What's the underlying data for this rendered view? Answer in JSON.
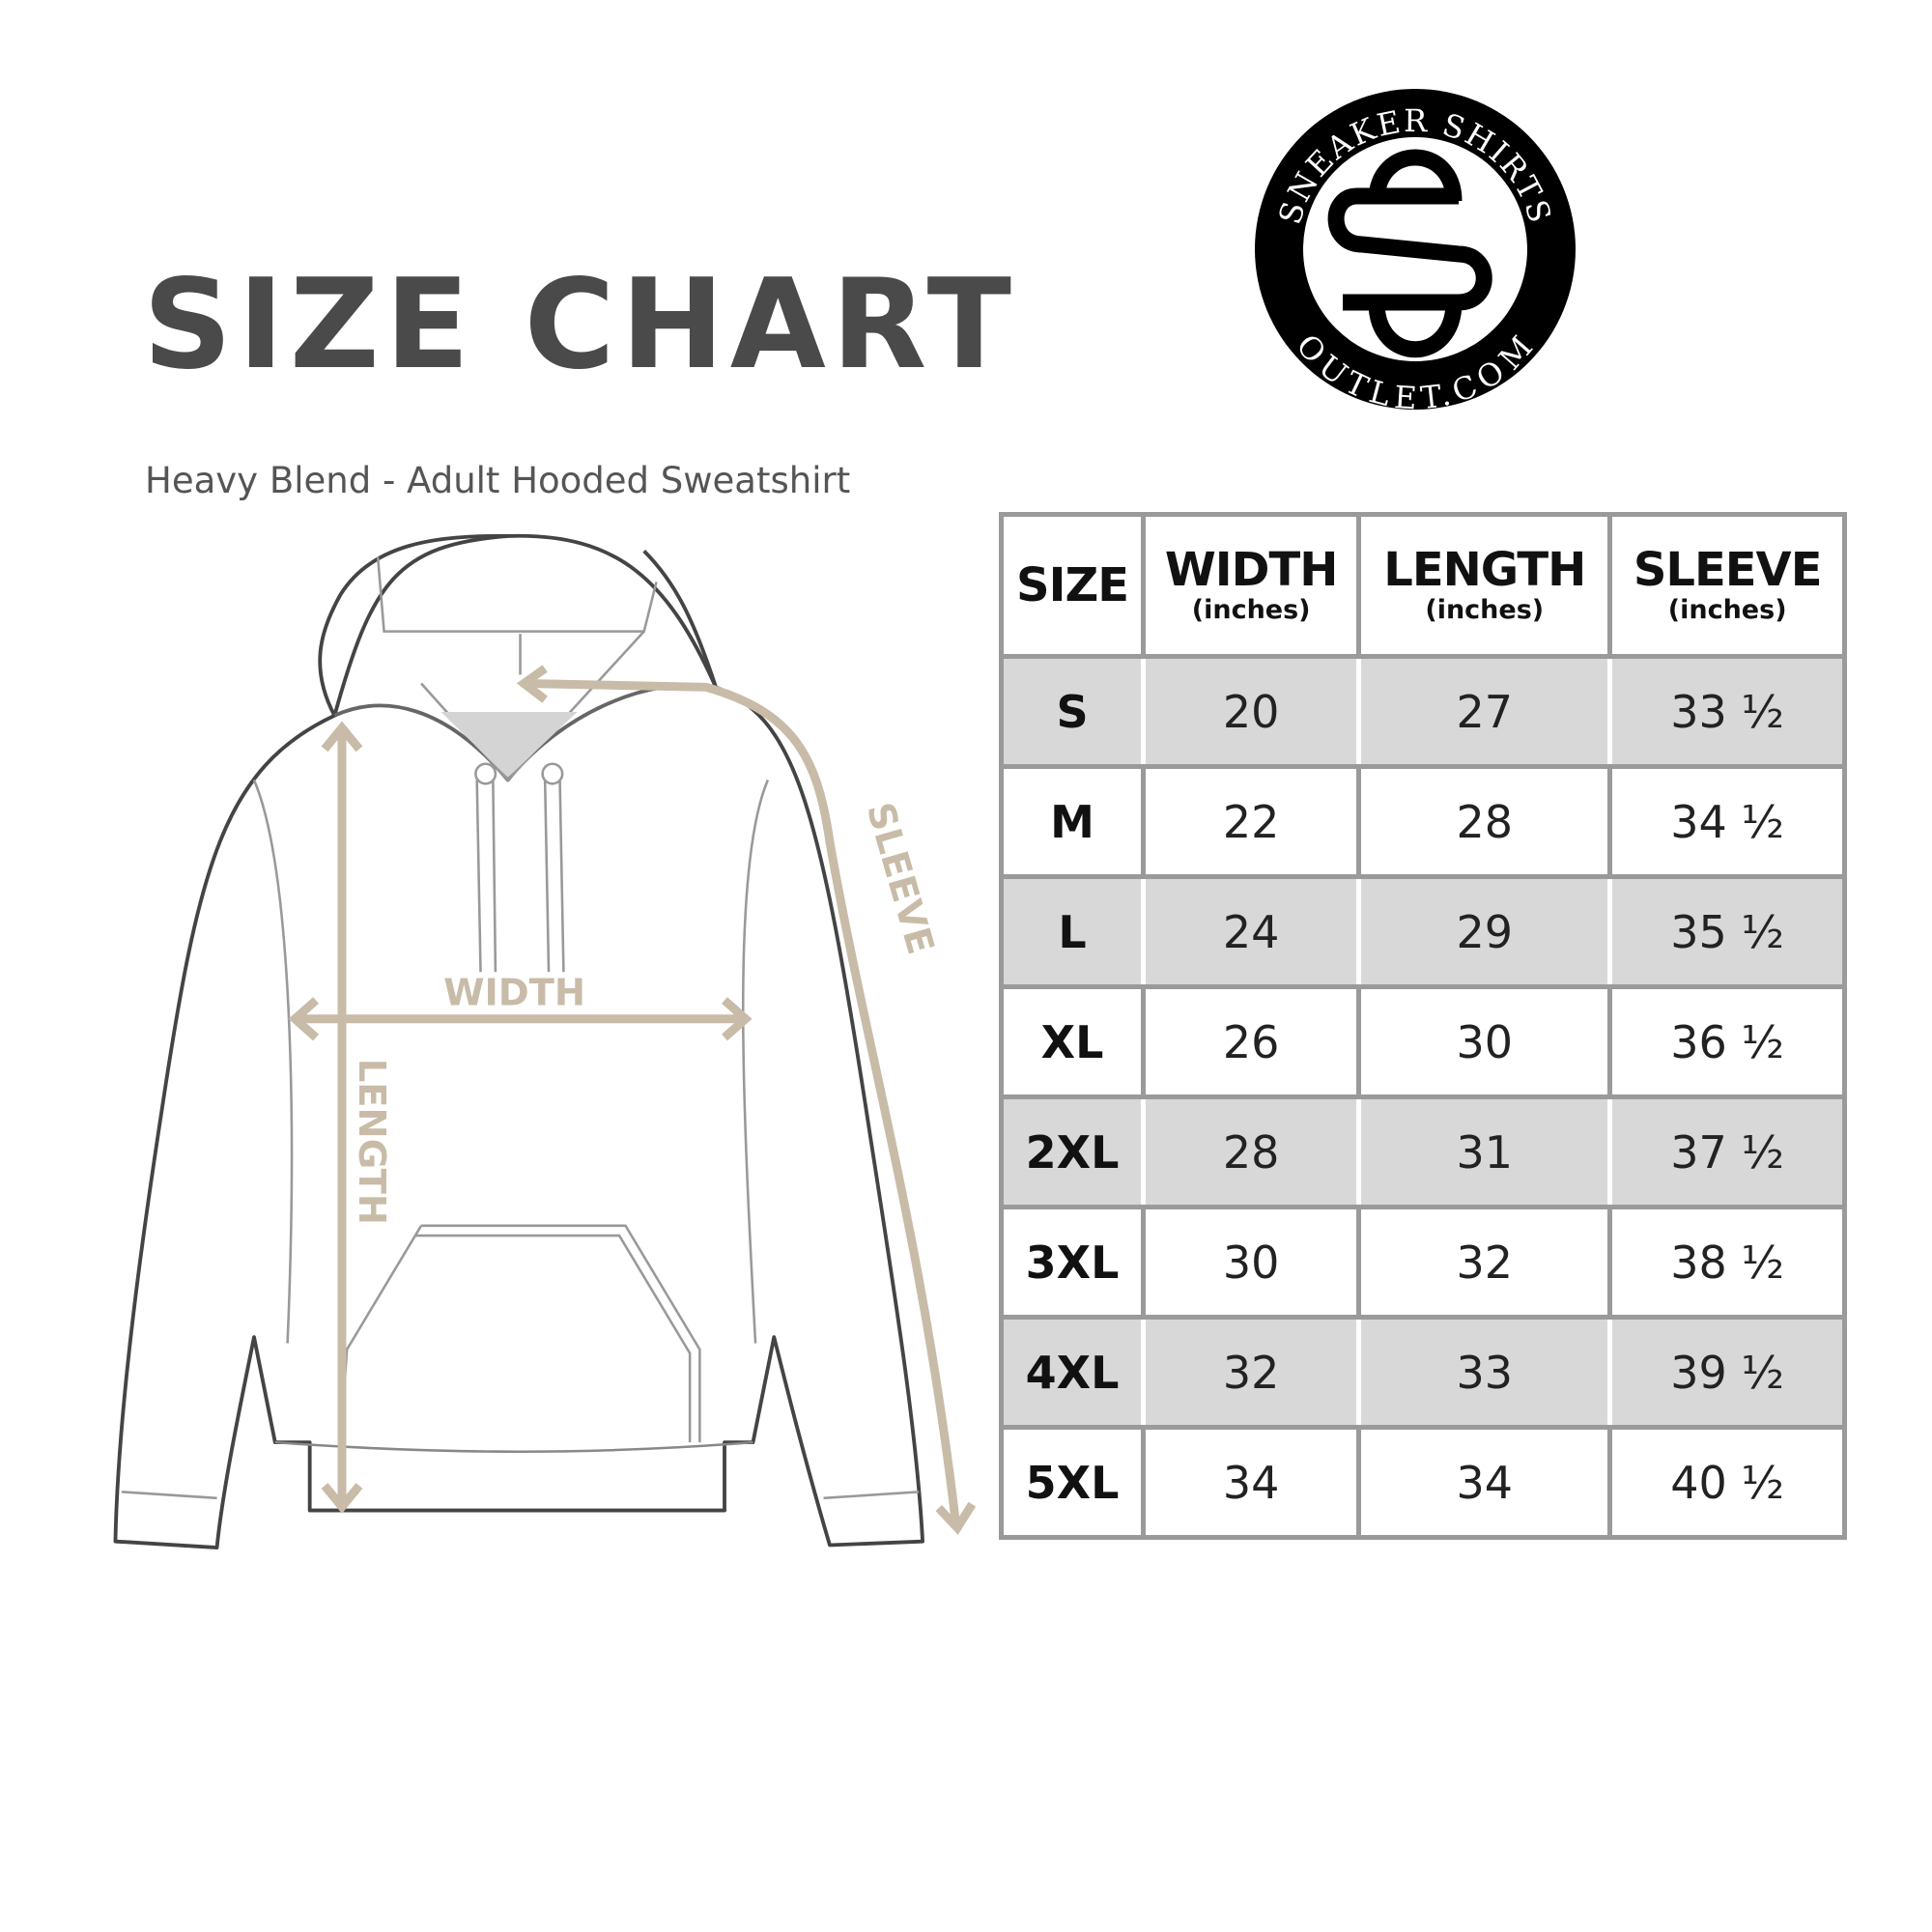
{
  "header": {
    "title": "SIZE CHART",
    "subtitle": "Heavy Blend - Adult Hooded Sweatshirt"
  },
  "logo": {
    "top_text": "SNEAKER SHIRTS",
    "bottom_text": "OUTLET.COM",
    "monogram": "SS"
  },
  "diagram": {
    "labels": {
      "width": "WIDTH",
      "length": "LENGTH",
      "sleeve": "SLEEVE"
    },
    "measure_color": "#c8bca8"
  },
  "table": {
    "columns": [
      {
        "label": "SIZE",
        "unit": ""
      },
      {
        "label": "WIDTH",
        "unit": "(inches)"
      },
      {
        "label": "LENGTH",
        "unit": "(inches)"
      },
      {
        "label": "SLEEVE",
        "unit": "(inches)"
      }
    ],
    "rows": [
      [
        "S",
        "20",
        "27",
        "33 ½"
      ],
      [
        "M",
        "22",
        "28",
        "34 ½"
      ],
      [
        "L",
        "24",
        "29",
        "35 ½"
      ],
      [
        "XL",
        "26",
        "30",
        "36 ½"
      ],
      [
        "2XL",
        "28",
        "31",
        "37 ½"
      ],
      [
        "3XL",
        "30",
        "32",
        "38 ½"
      ],
      [
        "4XL",
        "32",
        "33",
        "39 ½"
      ],
      [
        "5XL",
        "34",
        "34",
        "40 ½"
      ]
    ],
    "shade_color": "#d8d8d8",
    "border_color": "#9a9a9a"
  }
}
